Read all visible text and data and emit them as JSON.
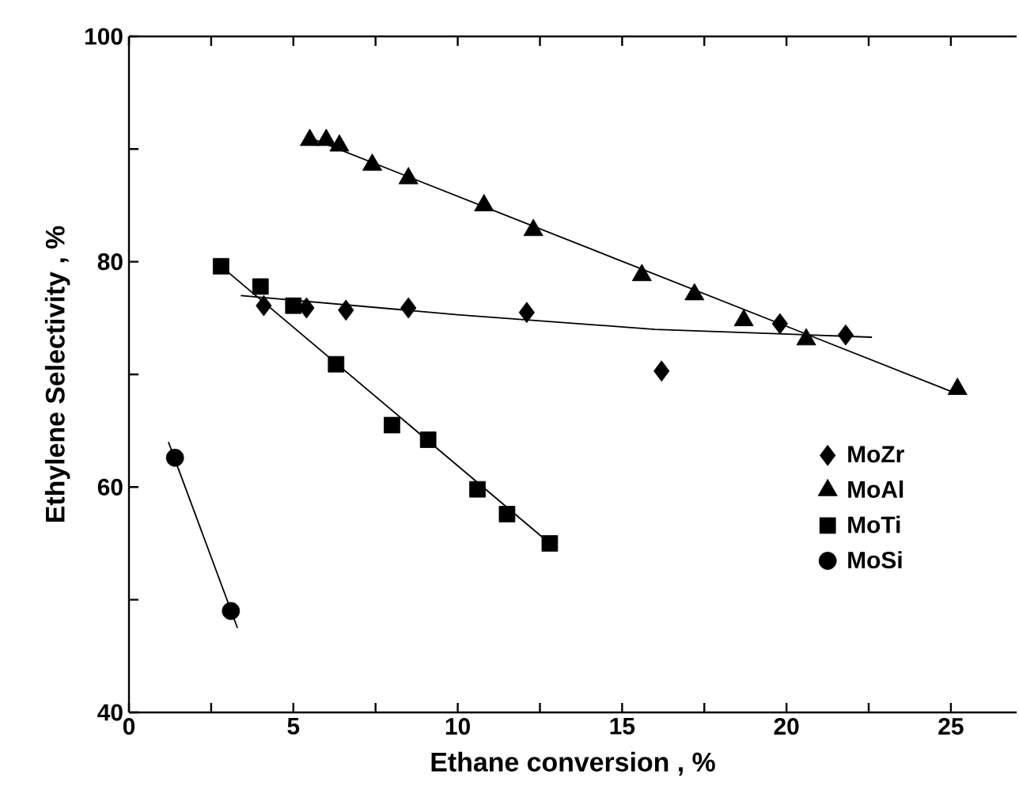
{
  "chart_data": {
    "type": "scatter",
    "xlabel": "Ethane conversion , %",
    "ylabel": "Ethylene Selectivity , %",
    "xlim": [
      0,
      27
    ],
    "ylim": [
      40,
      100
    ],
    "xticks": [
      0,
      {
        "value": 2.5,
        "label": null
      },
      5,
      {
        "value": 7.5,
        "label": null
      },
      10,
      {
        "value": 12.5,
        "label": null
      },
      15,
      {
        "value": 17.5,
        "label": null
      },
      20,
      {
        "value": 22.5,
        "label": null
      },
      25
    ],
    "yticks": [
      40,
      {
        "value": 50,
        "label": null
      },
      60,
      {
        "value": 70,
        "label": null
      },
      80,
      {
        "value": 90,
        "label": null
      },
      100
    ],
    "legend": "right",
    "grid": false,
    "series": [
      {
        "name": "MoZr",
        "marker": "diamond",
        "color": "#000000",
        "x": [
          4.1,
          5.4,
          6.6,
          8.5,
          12.1,
          16.2,
          19.8,
          21.8
        ],
        "values": [
          76.1,
          75.9,
          75.7,
          75.9,
          75.5,
          70.3,
          74.5,
          73.5
        ]
      },
      {
        "name": "MoAl",
        "marker": "triangle",
        "color": "#000000",
        "x": [
          5.5,
          6.0,
          6.4,
          7.4,
          8.5,
          10.8,
          12.3,
          15.6,
          17.2,
          18.7,
          20.6,
          25.2
        ],
        "values": [
          90.8,
          90.8,
          90.3,
          88.6,
          87.4,
          85.0,
          82.8,
          78.8,
          77.1,
          74.8,
          73.1,
          68.7
        ]
      },
      {
        "name": "MoTi",
        "marker": "square",
        "color": "#000000",
        "x": [
          2.8,
          4.0,
          5.0,
          6.3,
          8.0,
          9.1,
          10.6,
          11.5,
          12.8
        ],
        "values": [
          79.6,
          77.8,
          76.1,
          70.9,
          65.5,
          64.2,
          59.8,
          57.6,
          55.0
        ]
      },
      {
        "name": "MoSi",
        "marker": "circle",
        "color": "#000000",
        "x": [
          1.4,
          3.1
        ],
        "values": [
          62.6,
          49.0
        ]
      },
      {
        "type": "line",
        "marker": "none",
        "color": "#000000",
        "x": [
          3.4,
          10,
          16,
          22.6
        ],
        "values": [
          77.0,
          75.3,
          74.0,
          73.3
        ]
      },
      {
        "type": "line",
        "marker": "none",
        "color": "#000000",
        "x": [
          5.5,
          25.0
        ],
        "values": [
          91.0,
          68.5
        ]
      },
      {
        "type": "line",
        "marker": "none",
        "color": "#000000",
        "x": [
          2.8,
          12.8
        ],
        "values": [
          79.6,
          55.0
        ]
      },
      {
        "type": "line",
        "marker": "none",
        "color": "#000000",
        "x": [
          1.2,
          3.3
        ],
        "values": [
          64.0,
          47.5
        ]
      }
    ]
  }
}
